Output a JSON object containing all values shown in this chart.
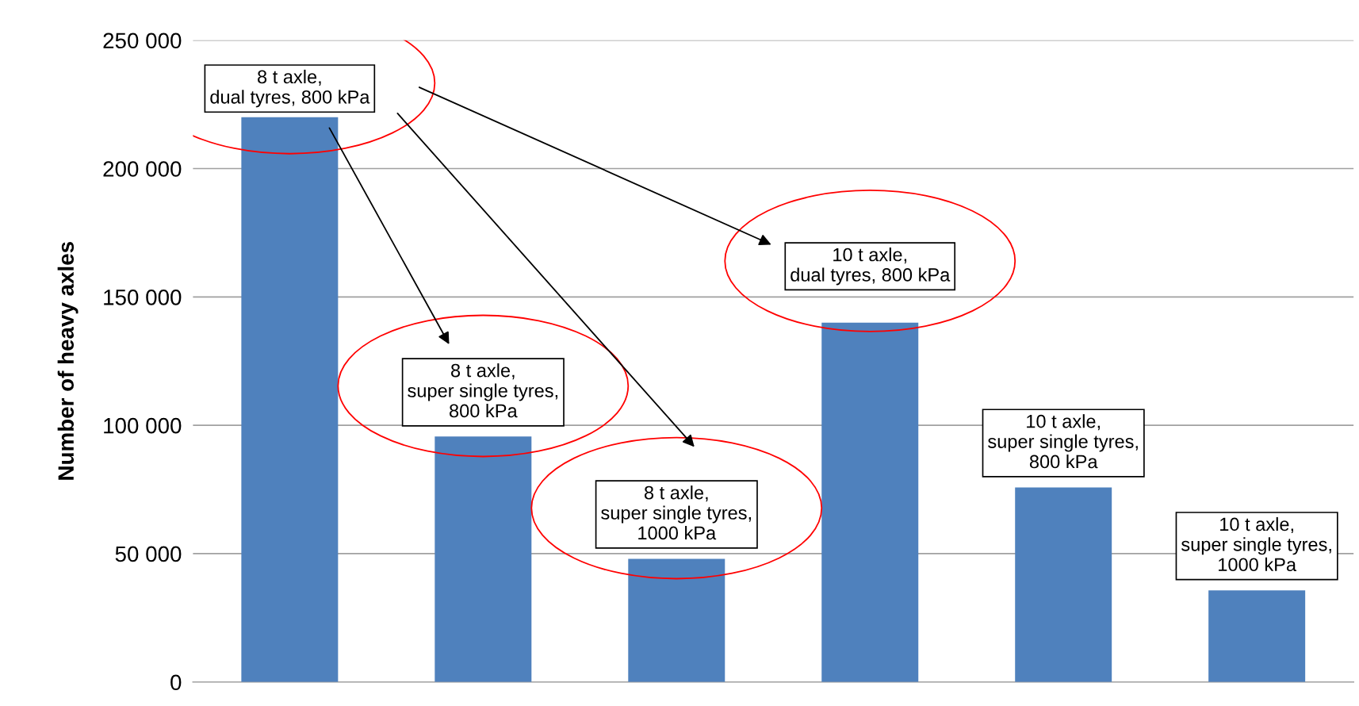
{
  "chart_data": {
    "type": "bar",
    "ylabel": "Number of heavy axles",
    "categories": [
      "8 t axle,\ndual tyres, 800 kPa",
      "8 t axle,\nsuper single tyres,\n800 kPa",
      "8 t axle,\nsuper single tyres,\n1000 kPa",
      "10 t axle,\ndual tyres, 800 kPa",
      "10 t axle,\nsuper single tyres,\n800 kPa",
      "10 t axle,\nsuper single tyres,\n1000 kPa"
    ],
    "values": [
      220000,
      95600,
      48000,
      140000,
      75800,
      35700
    ],
    "color": "#4f81bd",
    "ylim": [
      0,
      250000
    ],
    "yticks": [
      {
        "value": 0,
        "label": "0"
      },
      {
        "value": 50000,
        "label": "50 000"
      },
      {
        "value": 100000,
        "label": "100 000"
      },
      {
        "value": 150000,
        "label": "150 000"
      },
      {
        "value": 200000,
        "label": "200 000"
      },
      {
        "value": 250000,
        "label": "250 000"
      }
    ],
    "grid": "y"
  }
}
